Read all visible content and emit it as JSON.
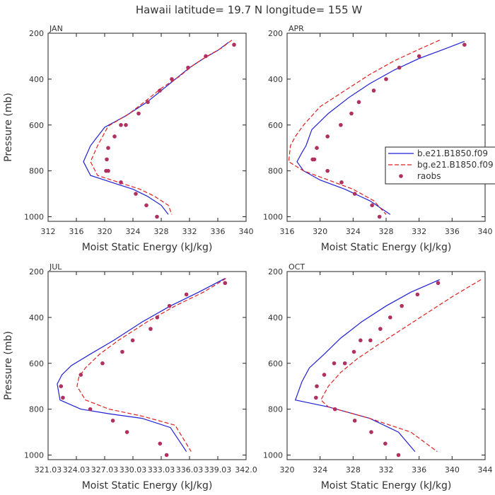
{
  "title": "Hawaii  latitude= 19.7 N longitude= 155 W",
  "chart_data": [
    {
      "type": "line",
      "panel": "JAN",
      "xlabel": "Moist Static Energy (kJ/kg)",
      "ylabel": "Pressure (mb)",
      "xlim": [
        312,
        340
      ],
      "ylim": [
        200,
        1020
      ],
      "y_inverted": true,
      "xticks": [
        "312",
        "316",
        "320",
        "324",
        "328",
        "332",
        "336",
        "340"
      ],
      "xtick_values": [
        312,
        316,
        320,
        324,
        328,
        332,
        336,
        340
      ],
      "yticks": [
        "200",
        "400",
        "600",
        "800",
        "1000"
      ],
      "ytick_values": [
        200,
        400,
        600,
        800,
        1000
      ],
      "series": [
        {
          "name": "b.e21.B1850.f09",
          "style": "solid",
          "color": "#1f1fd6",
          "x": [
            337.5,
            336,
            334,
            332,
            330,
            328,
            326,
            323,
            320,
            318,
            317,
            318,
            321,
            324,
            326,
            328,
            329
          ],
          "y": [
            240,
            275,
            310,
            350,
            400,
            450,
            500,
            560,
            610,
            690,
            760,
            820,
            850,
            880,
            910,
            950,
            990
          ]
        },
        {
          "name": "bg.e21.B1850.f09",
          "style": "dashed",
          "color": "#e01f1f",
          "x": [
            338,
            336.5,
            334.5,
            332.5,
            330.5,
            328,
            326,
            323.5,
            320.5,
            319,
            318,
            319,
            322,
            325,
            327,
            329,
            329.5
          ],
          "y": [
            230,
            265,
            300,
            340,
            390,
            440,
            490,
            550,
            605,
            690,
            760,
            820,
            850,
            880,
            910,
            950,
            990
          ]
        },
        {
          "name": "raobs",
          "style": "points",
          "color": "#b03060",
          "x": [
            338.3,
            334.3,
            331.8,
            329.5,
            327.8,
            326.1,
            324.8,
            323,
            322.3,
            321.4,
            320.5,
            320.3,
            320.2,
            320.5,
            322.3,
            324.4,
            325.9,
            327.4
          ],
          "y": [
            250,
            300,
            350,
            400,
            450,
            500,
            550,
            600,
            600,
            650,
            700,
            750,
            800,
            800,
            850,
            900,
            950,
            1000
          ]
        }
      ]
    },
    {
      "type": "line",
      "panel": "APR",
      "xlabel": "Moist Static Energy (kJ/kg)",
      "ylabel": "",
      "xlim": [
        316,
        340
      ],
      "ylim": [
        200,
        1020
      ],
      "y_inverted": true,
      "xticks": [
        "316",
        "320",
        "324",
        "328",
        "332",
        "336",
        "340"
      ],
      "xtick_values": [
        316,
        320,
        324,
        328,
        332,
        336,
        340
      ],
      "yticks": [
        "200",
        "400",
        "600",
        "800",
        "1000"
      ],
      "ytick_values": [
        200,
        400,
        600,
        800,
        1000
      ],
      "legend": {
        "position": "right",
        "entries": [
          "b.e21.B1850.f09",
          "bg.e21.B1850.f09",
          "raobs"
        ]
      },
      "series": [
        {
          "name": "b.e21.B1850.f09",
          "style": "solid",
          "color": "#1f1fd6",
          "x": [
            337.5,
            335,
            332,
            329,
            326,
            323.5,
            321,
            319,
            318.3,
            317.8,
            317.2,
            318,
            320,
            323,
            326,
            328.5
          ],
          "y": [
            235,
            270,
            310,
            360,
            420,
            480,
            550,
            620,
            690,
            720,
            760,
            800,
            840,
            880,
            930,
            990
          ]
        },
        {
          "name": "bg.e21.B1850.f09",
          "style": "dashed",
          "color": "#e01f1f",
          "x": [
            334.5,
            332,
            329,
            326,
            323,
            320,
            318,
            317,
            316.4,
            316.2,
            318,
            321,
            324,
            326.5,
            328
          ],
          "y": [
            230,
            270,
            320,
            380,
            450,
            520,
            600,
            650,
            690,
            760,
            800,
            840,
            880,
            930,
            990
          ]
        },
        {
          "name": "raobs",
          "style": "points",
          "color": "#b03060",
          "x": [
            337.5,
            332,
            329.6,
            328,
            326.5,
            324.7,
            323.8,
            322.5,
            320.9,
            319.6,
            319.3,
            319.1,
            320.9,
            322.6,
            324.2,
            326.3,
            327.2
          ],
          "y": [
            250,
            300,
            350,
            400,
            450,
            500,
            550,
            600,
            650,
            700,
            750,
            750,
            800,
            850,
            900,
            950,
            1000
          ]
        }
      ]
    },
    {
      "type": "line",
      "panel": "JUL",
      "xlabel": "Moist Static Energy (kJ/kg)",
      "ylabel": "Pressure (mb)",
      "xlim": [
        321.03,
        342.03
      ],
      "ylim": [
        200,
        1020
      ],
      "y_inverted": true,
      "xticks": [
        "321.03",
        "324.03",
        "327.03",
        "330.03",
        "333.03",
        "336.03",
        "339.03",
        "342.0"
      ],
      "xtick_values": [
        321.03,
        324.03,
        327.03,
        330.03,
        333.03,
        336.03,
        339.03,
        342.03
      ],
      "yticks": [
        "200",
        "400",
        "600",
        "800",
        "1000"
      ],
      "ytick_values": [
        200,
        400,
        600,
        800,
        1000
      ],
      "series": [
        {
          "name": "b.e21.B1850.f09",
          "style": "solid",
          "color": "#1f1fd6",
          "x": [
            339.8,
            337,
            334,
            331,
            328,
            325.5,
            323.5,
            322.5,
            322,
            322.3,
            324.5,
            327.5,
            331,
            334,
            335.7
          ],
          "y": [
            230,
            290,
            350,
            420,
            500,
            560,
            610,
            650,
            690,
            760,
            800,
            820,
            840,
            880,
            985
          ]
        },
        {
          "name": "bg.e21.B1850.f09",
          "style": "dashed",
          "color": "#e01f1f",
          "x": [
            339.9,
            337.5,
            334.5,
            331.5,
            328.5,
            326.5,
            325,
            324.3,
            324.1,
            325,
            327.5,
            331,
            334.5,
            336.2
          ],
          "y": [
            230,
            290,
            350,
            420,
            500,
            560,
            620,
            660,
            700,
            760,
            800,
            830,
            870,
            985
          ]
        },
        {
          "name": "raobs",
          "style": "points",
          "color": "#b03060",
          "x": [
            339.8,
            335.7,
            333.9,
            332.6,
            331.9,
            330,
            328.9,
            326.8,
            324.5,
            322.4,
            322.6,
            325.5,
            327.9,
            329.4,
            332.9,
            333.6
          ],
          "y": [
            250,
            300,
            350,
            400,
            450,
            500,
            550,
            600,
            650,
            700,
            750,
            800,
            850,
            900,
            950,
            1000
          ]
        }
      ]
    },
    {
      "type": "line",
      "panel": "OCT",
      "xlabel": "Moist Static Energy (kJ/kg)",
      "ylabel": "",
      "xlim": [
        320,
        344
      ],
      "ylim": [
        200,
        1020
      ],
      "y_inverted": true,
      "xticks": [
        "320",
        "324",
        "328",
        "332",
        "336",
        "340",
        "344"
      ],
      "xtick_values": [
        320,
        324,
        328,
        332,
        336,
        340,
        344
      ],
      "yticks": [
        "200",
        "400",
        "600",
        "800",
        "1000"
      ],
      "ytick_values": [
        200,
        400,
        600,
        800,
        1000
      ],
      "series": [
        {
          "name": "b.e21.B1850.f09",
          "style": "solid",
          "color": "#1f1fd6",
          "x": [
            338.5,
            335,
            332,
            329,
            326.5,
            324.5,
            322.7,
            321.8,
            321,
            325,
            330,
            333.5,
            335.5
          ],
          "y": [
            235,
            290,
            350,
            420,
            490,
            560,
            620,
            680,
            760,
            790,
            840,
            900,
            985
          ]
        },
        {
          "name": "bg.e21.B1850.f09",
          "style": "dashed",
          "color": "#e01f1f",
          "x": [
            343.5,
            340,
            337,
            334,
            331,
            328.5,
            326.5,
            325,
            324.1,
            325,
            330,
            335,
            338.2
          ],
          "y": [
            235,
            310,
            380,
            450,
            520,
            580,
            640,
            700,
            760,
            790,
            840,
            900,
            985
          ]
        },
        {
          "name": "raobs",
          "style": "points",
          "color": "#b03060",
          "x": [
            338.3,
            335.8,
            333.9,
            332.5,
            331.3,
            330.1,
            328.9,
            328.1,
            327,
            325.7,
            324.5,
            323.6,
            323.5,
            325.8,
            328.2,
            330.2,
            331.9,
            333.5
          ],
          "y": [
            250,
            300,
            350,
            400,
            450,
            500,
            500,
            550,
            600,
            600,
            650,
            700,
            750,
            800,
            850,
            900,
            950,
            1000
          ]
        }
      ]
    }
  ]
}
